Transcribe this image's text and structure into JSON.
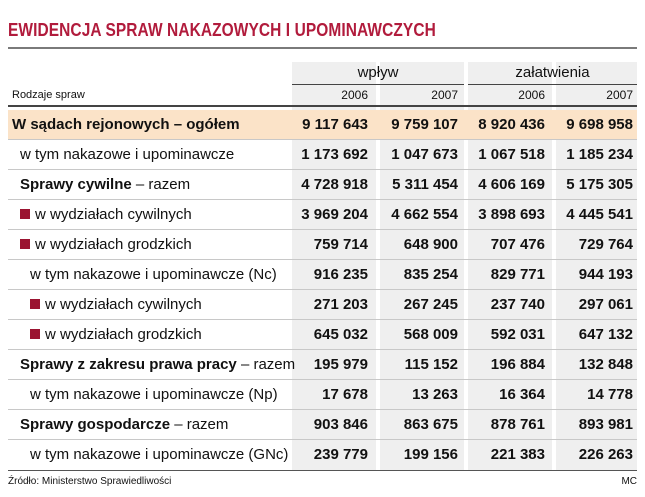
{
  "title": "EWIDENCJA SPRAW NAKAZOWYCH I UPOMINAWCZYCH",
  "row_header": "Rodzaje spraw",
  "groups": [
    "wpływ",
    "załatwienia"
  ],
  "years": [
    "2006",
    "2007",
    "2006",
    "2007"
  ],
  "rows": [
    {
      "label_bold": "W sądach rejonowych – ogółem",
      "label": "",
      "values": [
        "9 117 643",
        "9 759 107",
        "8 920 436",
        "9 698 958"
      ]
    },
    {
      "label_bold": "",
      "label": "w tym nakazowe i upominawcze",
      "values": [
        "1 173 692",
        "1 047 673",
        "1 067 518",
        "1 185 234"
      ]
    },
    {
      "label_bold": "Sprawy cywilne",
      "label": " – razem",
      "values": [
        "4 728 918",
        "5 311 454",
        "4 606 169",
        "5 175 305"
      ]
    },
    {
      "label_bold": "",
      "label": "w wydziałach cywilnych",
      "values": [
        "3 969 204",
        "4 662 554",
        "3 898 693",
        "4 445 541"
      ]
    },
    {
      "label_bold": "",
      "label": "w wydziałach grodzkich",
      "values": [
        "759 714",
        "648 900",
        "707 476",
        "729 764"
      ]
    },
    {
      "label_bold": "",
      "label": "w tym nakazowe i upominawcze (Nc)",
      "values": [
        "916 235",
        "835 254",
        "829 771",
        "944 193"
      ]
    },
    {
      "label_bold": "",
      "label": "w wydziałach cywilnych",
      "values": [
        "271 203",
        "267 245",
        "237 740",
        "297 061"
      ]
    },
    {
      "label_bold": "",
      "label": "w wydziałach grodzkich",
      "values": [
        "645 032",
        "568 009",
        "592 031",
        "647 132"
      ]
    },
    {
      "label_bold": "Sprawy z zakresu prawa pracy",
      "label": " – razem",
      "values": [
        "195 979",
        "115 152",
        "196 884",
        "132 848"
      ]
    },
    {
      "label_bold": "",
      "label": "w tym nakazowe i upominawcze (Np)",
      "values": [
        "17 678",
        "13 263",
        "16 364",
        "14 778"
      ]
    },
    {
      "label_bold": "Sprawy gospodarcze",
      "label": " – razem",
      "values": [
        "903 846",
        "863 675",
        "878 761",
        "893 981"
      ]
    },
    {
      "label_bold": "",
      "label": "w tym nakazowe i upominawcze (GNc)",
      "values": [
        "239 779",
        "199 156",
        "221 383",
        "226 263"
      ]
    }
  ],
  "source": "Źródło: Ministerstwo Sprawiedliwości",
  "author": "MC",
  "colors": {
    "title": "#b11b3c",
    "highlight_row": "#fbe3c8",
    "bullet": "#9b1431",
    "column_shade": "#efefef"
  }
}
